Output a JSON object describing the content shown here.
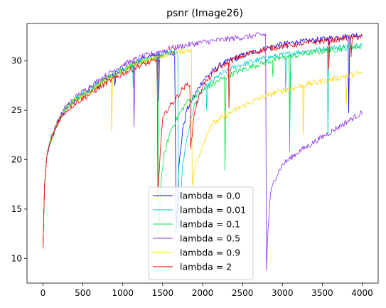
{
  "chart_data": {
    "type": "line",
    "title": "psnr (Image26)",
    "xlabel": "",
    "ylabel": "",
    "xlim": [
      -200,
      4200
    ],
    "ylim": [
      7.5,
      33.8
    ],
    "xticks": [
      0,
      500,
      1000,
      1500,
      2000,
      2500,
      3000,
      3500,
      4000
    ],
    "yticks": [
      10,
      15,
      20,
      25,
      30
    ],
    "grid": false,
    "legend_position": "lower center",
    "series": [
      {
        "name": "lambda = 0.0",
        "color": "#0000ff",
        "points": [
          [
            0,
            11
          ],
          [
            20,
            17.5
          ],
          [
            50,
            20.5
          ],
          [
            100,
            22
          ],
          [
            200,
            24
          ],
          [
            300,
            25.3
          ],
          [
            400,
            26
          ],
          [
            600,
            27
          ],
          [
            800,
            28.2
          ],
          [
            1000,
            29
          ],
          [
            1200,
            30
          ],
          [
            1400,
            30.6
          ],
          [
            1600,
            30.8
          ],
          [
            1650,
            30.9
          ],
          [
            1670,
            12.8
          ],
          [
            1700,
            19
          ],
          [
            1750,
            23
          ],
          [
            1800,
            25
          ],
          [
            1900,
            26.5
          ],
          [
            2000,
            28
          ],
          [
            2200,
            29.5
          ],
          [
            2400,
            30.3
          ],
          [
            2600,
            30.8
          ],
          [
            2800,
            31.3
          ],
          [
            3000,
            31.7
          ],
          [
            3200,
            31.9
          ],
          [
            3400,
            32.1
          ],
          [
            3600,
            32.3
          ],
          [
            3800,
            32.5
          ],
          [
            4000,
            32.7
          ]
        ],
        "dips": [
          [
            900,
            27.5
          ],
          [
            1440,
            28.8
          ],
          [
            2420,
            30.0
          ],
          [
            3060,
            31.3
          ],
          [
            3580,
            31.6
          ],
          [
            3830,
            24.7
          ]
        ]
      },
      {
        "name": "lambda = 0.01",
        "color": "#00c8c8",
        "points": [
          [
            0,
            11
          ],
          [
            20,
            17.5
          ],
          [
            50,
            20.5
          ],
          [
            100,
            22.2
          ],
          [
            200,
            24.2
          ],
          [
            300,
            25.4
          ],
          [
            400,
            26.1
          ],
          [
            600,
            27.2
          ],
          [
            800,
            28.3
          ],
          [
            1000,
            29.2
          ],
          [
            1200,
            30
          ],
          [
            1400,
            30.4
          ],
          [
            1600,
            30.8
          ],
          [
            1690,
            30.9
          ],
          [
            1700,
            12.6
          ],
          [
            1750,
            19.5
          ],
          [
            1800,
            22
          ],
          [
            1850,
            24
          ],
          [
            1900,
            25.5
          ],
          [
            2000,
            27
          ],
          [
            2200,
            28.5
          ],
          [
            2400,
            29.4
          ],
          [
            2600,
            29.9
          ],
          [
            2800,
            30.3
          ],
          [
            3000,
            30.6
          ],
          [
            3200,
            30.9
          ],
          [
            3400,
            31.1
          ],
          [
            3600,
            31.3
          ],
          [
            3800,
            31.5
          ],
          [
            4000,
            31.7
          ]
        ],
        "dips": [
          [
            1130,
            27.3
          ],
          [
            1430,
            27.5
          ],
          [
            2050,
            25.0
          ],
          [
            3040,
            26.9
          ],
          [
            3090,
            20.8
          ],
          [
            3570,
            22.6
          ]
        ]
      },
      {
        "name": "lambda = 0.1",
        "color": "#00e040",
        "points": [
          [
            0,
            11
          ],
          [
            20,
            17.5
          ],
          [
            50,
            20.5
          ],
          [
            100,
            22
          ],
          [
            200,
            24
          ],
          [
            300,
            25.3
          ],
          [
            400,
            26
          ],
          [
            600,
            27
          ],
          [
            800,
            28.2
          ],
          [
            1000,
            29
          ],
          [
            1200,
            29.8
          ],
          [
            1400,
            30.3
          ],
          [
            1440,
            30.4
          ],
          [
            1450,
            12.2
          ],
          [
            1480,
            18
          ],
          [
            1520,
            20.5
          ],
          [
            1600,
            23
          ],
          [
            1700,
            24.5
          ],
          [
            1800,
            25.8
          ],
          [
            1900,
            26.5
          ],
          [
            2000,
            27
          ],
          [
            2200,
            28
          ],
          [
            2400,
            28.8
          ],
          [
            2600,
            29.4
          ],
          [
            2800,
            29.9
          ],
          [
            3000,
            30.3
          ],
          [
            3200,
            30.6
          ],
          [
            3400,
            30.9
          ],
          [
            3600,
            31.1
          ],
          [
            3800,
            31.3
          ],
          [
            4000,
            31.5
          ]
        ],
        "dips": [
          [
            2280,
            18.9
          ],
          [
            2880,
            28.4
          ],
          [
            3090,
            24.1
          ]
        ]
      },
      {
        "name": "lambda = 0.5",
        "color": "#8a2be2",
        "points": [
          [
            0,
            11
          ],
          [
            20,
            17.5
          ],
          [
            50,
            20.5
          ],
          [
            100,
            22
          ],
          [
            200,
            24.2
          ],
          [
            300,
            25.5
          ],
          [
            400,
            26.3
          ],
          [
            600,
            27.5
          ],
          [
            800,
            28.6
          ],
          [
            1000,
            29.6
          ],
          [
            1200,
            30.3
          ],
          [
            1400,
            30.8
          ],
          [
            1600,
            31.3
          ],
          [
            1800,
            31.6
          ],
          [
            2000,
            31.9
          ],
          [
            2200,
            32.1
          ],
          [
            2400,
            32.3
          ],
          [
            2600,
            32.5
          ],
          [
            2790,
            32.7
          ],
          [
            2800,
            8.7
          ],
          [
            2820,
            13
          ],
          [
            2850,
            16.5
          ],
          [
            2900,
            18
          ],
          [
            3000,
            19.5
          ],
          [
            3200,
            20.8
          ],
          [
            3400,
            21.8
          ],
          [
            3600,
            22.8
          ],
          [
            3800,
            23.8
          ],
          [
            4000,
            24.8
          ]
        ],
        "dips": [
          [
            1140,
            23.3
          ],
          [
            1450,
            25.9
          ]
        ]
      },
      {
        "name": "lambda = 0.9",
        "color": "#ffd700",
        "points": [
          [
            0,
            11
          ],
          [
            20,
            17.5
          ],
          [
            50,
            20.5
          ],
          [
            100,
            22
          ],
          [
            200,
            24
          ],
          [
            300,
            25.3
          ],
          [
            400,
            26
          ],
          [
            600,
            27
          ],
          [
            800,
            28.2
          ],
          [
            1000,
            29
          ],
          [
            1200,
            29.8
          ],
          [
            1400,
            30.3
          ],
          [
            1600,
            30.7
          ],
          [
            1800,
            31.1
          ],
          [
            1860,
            31.2
          ],
          [
            1870,
            17.2
          ],
          [
            1900,
            19
          ],
          [
            2000,
            21.5
          ],
          [
            2100,
            23.5
          ],
          [
            2200,
            24
          ],
          [
            2400,
            25
          ],
          [
            2600,
            25.8
          ],
          [
            2800,
            26.5
          ],
          [
            3000,
            27
          ],
          [
            3200,
            27.4
          ],
          [
            3400,
            27.8
          ],
          [
            3600,
            28.1
          ],
          [
            3800,
            28.5
          ],
          [
            4000,
            28.8
          ]
        ],
        "dips": [
          [
            860,
            22.9
          ],
          [
            3260,
            22.5
          ],
          [
            3800,
            25.5
          ]
        ]
      },
      {
        "name": "lambda = 2",
        "color": "#ee0000",
        "points": [
          [
            0,
            11
          ],
          [
            20,
            17.5
          ],
          [
            50,
            20.5
          ],
          [
            100,
            22
          ],
          [
            200,
            24
          ],
          [
            300,
            25
          ],
          [
            400,
            25.7
          ],
          [
            600,
            26.7
          ],
          [
            800,
            27.8
          ],
          [
            1000,
            28.7
          ],
          [
            1200,
            29.5
          ],
          [
            1400,
            30
          ],
          [
            1430,
            30.1
          ],
          [
            1440,
            16.1
          ],
          [
            1470,
            21
          ],
          [
            1500,
            24
          ],
          [
            1550,
            25
          ],
          [
            1650,
            26
          ],
          [
            1750,
            27.2
          ],
          [
            1840,
            27.8
          ],
          [
            1850,
            21
          ],
          [
            1900,
            25
          ],
          [
            2000,
            27.5
          ],
          [
            2200,
            29.3
          ],
          [
            2400,
            30.2
          ],
          [
            2600,
            30.8
          ],
          [
            2800,
            31.2
          ],
          [
            3000,
            31.5
          ],
          [
            3200,
            31.7
          ],
          [
            3400,
            31.9
          ],
          [
            3600,
            32.1
          ],
          [
            3800,
            32.3
          ],
          [
            4000,
            32.5
          ]
        ],
        "dips": [
          [
            2330,
            25.2
          ],
          [
            3580,
            29.1
          ],
          [
            3860,
            30.4
          ]
        ]
      }
    ]
  }
}
